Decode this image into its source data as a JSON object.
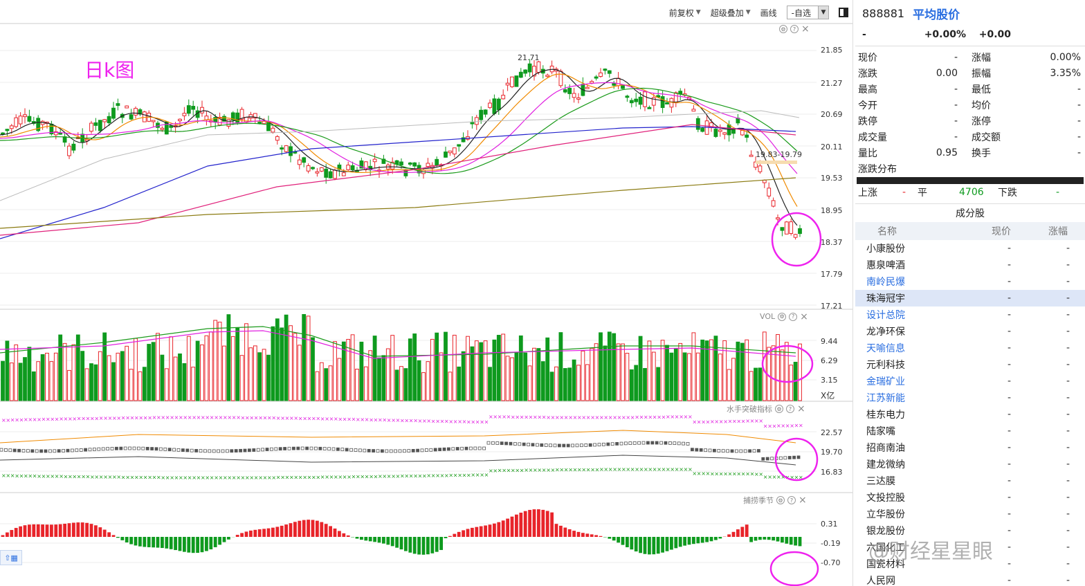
{
  "toolbar": {
    "fuquan_label": "前复权",
    "overlay_label": "超级叠加",
    "draw_label": "画线",
    "select_value": "-自选"
  },
  "kline": {
    "annotation": "日k图",
    "high_label": "21.71",
    "range_label": "19.83-19.79",
    "axis": [
      "21.85",
      "21.27",
      "20.69",
      "20.11",
      "19.53",
      "18.95",
      "18.37",
      "17.79",
      "17.21"
    ]
  },
  "vol": {
    "title": "VOL",
    "axis": [
      "9.44",
      "6.29",
      "3.15"
    ],
    "unit": "X亿"
  },
  "shuishou": {
    "title": "水手突破指标",
    "axis": [
      "22.57",
      "19.70",
      "16.83"
    ]
  },
  "bulao": {
    "title": "捕捞季节",
    "axis": [
      "0.31",
      "-0.19",
      "-0.70"
    ]
  },
  "colors": {
    "up": "#e8242a",
    "down": "#0e9a1e",
    "accent": "#2a6ee0",
    "annot": "#ee22ee"
  },
  "quote": {
    "code": "888881",
    "name": "平均股价",
    "price": "-",
    "change_pct": "+0.00%",
    "change": "+0.00",
    "rows": [
      {
        "l1": "现价",
        "v1": "-",
        "l2": "涨幅",
        "v2": "0.00%"
      },
      {
        "l1": "涨跌",
        "v1": "0.00",
        "l2": "振幅",
        "v2": "3.35%"
      },
      {
        "l1": "最高",
        "v1": "-",
        "l2": "最低",
        "v2": "-"
      },
      {
        "l1": "今开",
        "v1": "-",
        "l2": "均价",
        "v2": "-"
      },
      {
        "l1": "跌停",
        "v1": "-",
        "l2": "涨停",
        "v2": "-"
      },
      {
        "l1": "成交量",
        "v1": "-",
        "l2": "成交额",
        "v2": "-"
      },
      {
        "l1": "量比",
        "v1": "0.95",
        "l2": "换手",
        "v2": "-"
      }
    ],
    "dist_title": "涨跌分布",
    "up_label": "上涨",
    "up_value": "-",
    "flat_label": "平",
    "flat_value": "4706",
    "down_label": "下跌",
    "down_value": "-"
  },
  "components": {
    "title": "成分股",
    "headers": [
      "名称",
      "现价",
      "涨幅"
    ],
    "rows": [
      {
        "name": "小康股份",
        "price": "-",
        "chg": "-",
        "blue": false
      },
      {
        "name": "惠泉啤酒",
        "price": "-",
        "chg": "-",
        "blue": false
      },
      {
        "name": "南岭民爆",
        "price": "-",
        "chg": "-",
        "blue": true
      },
      {
        "name": "珠海冠宇",
        "price": "-",
        "chg": "-",
        "blue": false
      },
      {
        "name": "设计总院",
        "price": "-",
        "chg": "-",
        "blue": true
      },
      {
        "name": "龙净环保",
        "price": "-",
        "chg": "-",
        "blue": false
      },
      {
        "name": "天喻信息",
        "price": "-",
        "chg": "-",
        "blue": true
      },
      {
        "name": "元利科技",
        "price": "-",
        "chg": "-",
        "blue": false
      },
      {
        "name": "金瑞矿业",
        "price": "-",
        "chg": "-",
        "blue": true
      },
      {
        "name": "江苏新能",
        "price": "-",
        "chg": "-",
        "blue": true
      },
      {
        "name": "桂东电力",
        "price": "-",
        "chg": "-",
        "blue": false
      },
      {
        "name": "陆家嘴",
        "price": "-",
        "chg": "-",
        "blue": false
      },
      {
        "name": "招商南油",
        "price": "-",
        "chg": "-",
        "blue": false
      },
      {
        "name": "建龙微纳",
        "price": "-",
        "chg": "-",
        "blue": false
      },
      {
        "name": "三达膜",
        "price": "-",
        "chg": "-",
        "blue": false
      },
      {
        "name": "文投控股",
        "price": "-",
        "chg": "-",
        "blue": false
      },
      {
        "name": "立华股份",
        "price": "-",
        "chg": "-",
        "blue": false
      },
      {
        "name": "银龙股份",
        "price": "-",
        "chg": "-",
        "blue": false
      },
      {
        "name": "六国化工",
        "price": "-",
        "chg": "-",
        "blue": false
      },
      {
        "name": "国瓷材料",
        "price": "-",
        "chg": "-",
        "blue": false
      },
      {
        "name": "人民网",
        "price": "-",
        "chg": "-",
        "blue": false
      }
    ]
  },
  "watermark": "@财经星星眼"
}
